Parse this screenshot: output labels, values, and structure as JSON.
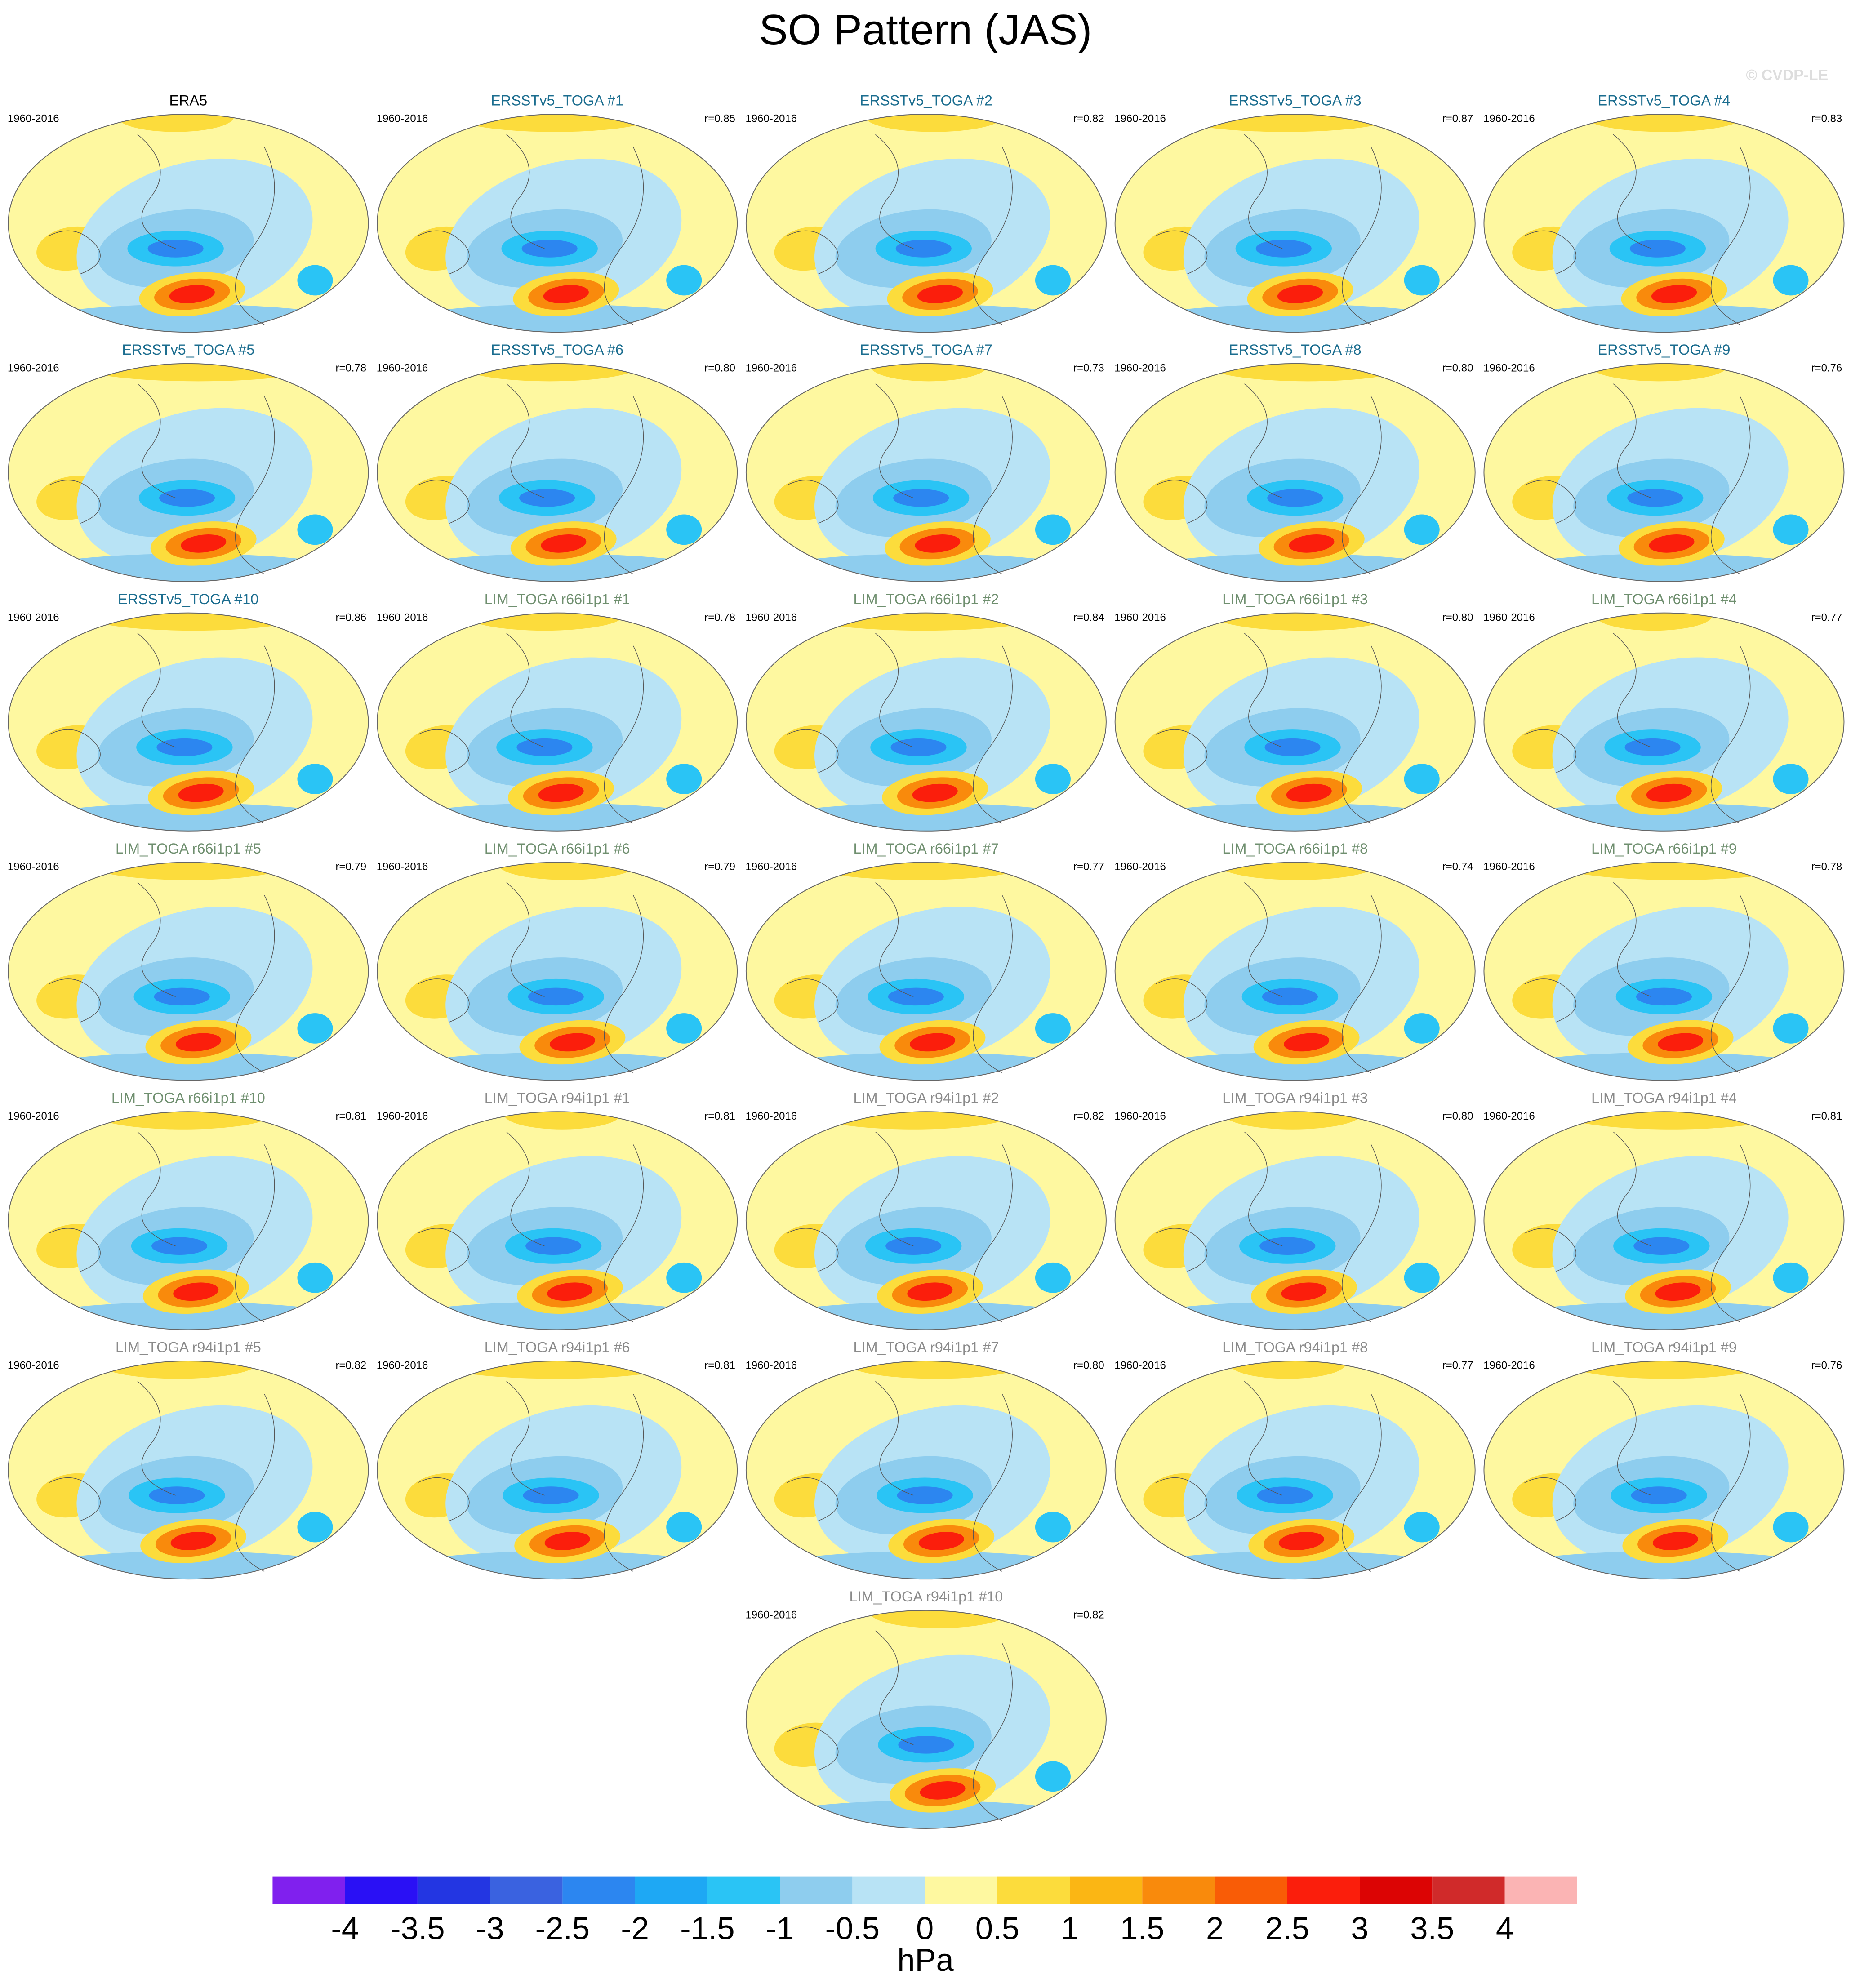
{
  "title": "SO Pattern (JAS)",
  "watermark": "© CVDP-LE",
  "panels": [
    {
      "title": "ERA5",
      "title_color": "#000000",
      "period": "1960-2016",
      "r": null
    },
    {
      "title": "ERSSTv5_TOGA #1",
      "title_color": "#1b6d8f",
      "period": "1960-2016",
      "r": "r=0.85"
    },
    {
      "title": "ERSSTv5_TOGA #2",
      "title_color": "#1b6d8f",
      "period": "1960-2016",
      "r": "r=0.82"
    },
    {
      "title": "ERSSTv5_TOGA #3",
      "title_color": "#1b6d8f",
      "period": "1960-2016",
      "r": "r=0.87"
    },
    {
      "title": "ERSSTv5_TOGA #4",
      "title_color": "#1b6d8f",
      "period": "1960-2016",
      "r": "r=0.83"
    },
    {
      "title": "ERSSTv5_TOGA #5",
      "title_color": "#1b6d8f",
      "period": "1960-2016",
      "r": "r=0.78"
    },
    {
      "title": "ERSSTv5_TOGA #6",
      "title_color": "#1b6d8f",
      "period": "1960-2016",
      "r": "r=0.80"
    },
    {
      "title": "ERSSTv5_TOGA #7",
      "title_color": "#1b6d8f",
      "period": "1960-2016",
      "r": "r=0.73"
    },
    {
      "title": "ERSSTv5_TOGA #8",
      "title_color": "#1b6d8f",
      "period": "1960-2016",
      "r": "r=0.80"
    },
    {
      "title": "ERSSTv5_TOGA #9",
      "title_color": "#1b6d8f",
      "period": "1960-2016",
      "r": "r=0.76"
    },
    {
      "title": "ERSSTv5_TOGA #10",
      "title_color": "#1b6d8f",
      "period": "1960-2016",
      "r": "r=0.86"
    },
    {
      "title": "LIM_TOGA r66i1p1 #1",
      "title_color": "#6f8f6f",
      "period": "1960-2016",
      "r": "r=0.78"
    },
    {
      "title": "LIM_TOGA r66i1p1 #2",
      "title_color": "#6f8f6f",
      "period": "1960-2016",
      "r": "r=0.84"
    },
    {
      "title": "LIM_TOGA r66i1p1 #3",
      "title_color": "#6f8f6f",
      "period": "1960-2016",
      "r": "r=0.80"
    },
    {
      "title": "LIM_TOGA r66i1p1 #4",
      "title_color": "#6f8f6f",
      "period": "1960-2016",
      "r": "r=0.77"
    },
    {
      "title": "LIM_TOGA r66i1p1 #5",
      "title_color": "#6f8f6f",
      "period": "1960-2016",
      "r": "r=0.79"
    },
    {
      "title": "LIM_TOGA r66i1p1 #6",
      "title_color": "#6f8f6f",
      "period": "1960-2016",
      "r": "r=0.79"
    },
    {
      "title": "LIM_TOGA r66i1p1 #7",
      "title_color": "#6f8f6f",
      "period": "1960-2016",
      "r": "r=0.77"
    },
    {
      "title": "LIM_TOGA r66i1p1 #8",
      "title_color": "#6f8f6f",
      "period": "1960-2016",
      "r": "r=0.74"
    },
    {
      "title": "LIM_TOGA r66i1p1 #9",
      "title_color": "#6f8f6f",
      "period": "1960-2016",
      "r": "r=0.78"
    },
    {
      "title": "LIM_TOGA r66i1p1 #10",
      "title_color": "#6f8f6f",
      "period": "1960-2016",
      "r": "r=0.81"
    },
    {
      "title": "LIM_TOGA r94i1p1 #1",
      "title_color": "#8a8a8a",
      "period": "1960-2016",
      "r": "r=0.81"
    },
    {
      "title": "LIM_TOGA r94i1p1 #2",
      "title_color": "#8a8a8a",
      "period": "1960-2016",
      "r": "r=0.82"
    },
    {
      "title": "LIM_TOGA r94i1p1 #3",
      "title_color": "#8a8a8a",
      "period": "1960-2016",
      "r": "r=0.80"
    },
    {
      "title": "LIM_TOGA r94i1p1 #4",
      "title_color": "#8a8a8a",
      "period": "1960-2016",
      "r": "r=0.81"
    },
    {
      "title": "LIM_TOGA r94i1p1 #5",
      "title_color": "#8a8a8a",
      "period": "1960-2016",
      "r": "r=0.82"
    },
    {
      "title": "LIM_TOGA r94i1p1 #6",
      "title_color": "#8a8a8a",
      "period": "1960-2016",
      "r": "r=0.81"
    },
    {
      "title": "LIM_TOGA r94i1p1 #7",
      "title_color": "#8a8a8a",
      "period": "1960-2016",
      "r": "r=0.80"
    },
    {
      "title": "LIM_TOGA r94i1p1 #8",
      "title_color": "#8a8a8a",
      "period": "1960-2016",
      "r": "r=0.77"
    },
    {
      "title": "LIM_TOGA r94i1p1 #9",
      "title_color": "#8a8a8a",
      "period": "1960-2016",
      "r": "r=0.76"
    },
    {
      "title": "LIM_TOGA r94i1p1 #10",
      "title_color": "#8a8a8a",
      "period": "1960-2016",
      "r": "r=0.82"
    }
  ],
  "colorbar": {
    "levels": [
      -4,
      -3.5,
      -3,
      -2.5,
      -2,
      -1.5,
      -1,
      -0.5,
      0,
      0.5,
      1,
      1.5,
      2,
      2.5,
      3,
      3.5,
      4
    ],
    "colors": [
      "#8020ee",
      "#2a10f5",
      "#2336e2",
      "#3a62e0",
      "#2c86f0",
      "#1ea8f4",
      "#2ac4f5",
      "#8ecdee",
      "#b8e3f5",
      "#fef8a0",
      "#fcdc3c",
      "#fbb614",
      "#f98a0c",
      "#f95c06",
      "#fb1e0c",
      "#dc0404",
      "#d02a2a",
      "#fbb4b4"
    ],
    "label": "hPa"
  }
}
